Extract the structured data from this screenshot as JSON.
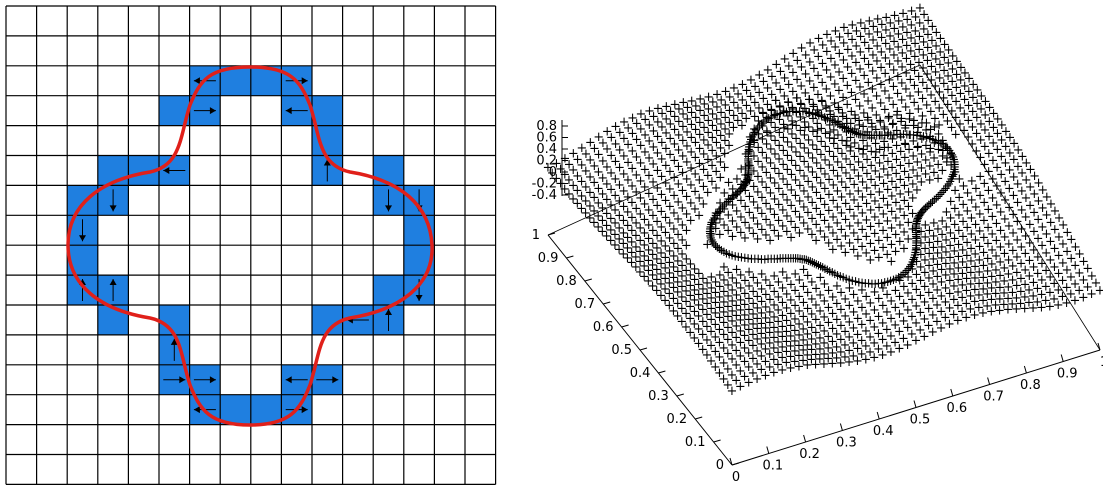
{
  "colors": {
    "highlight_cell": "#1f7fe0",
    "interface_curve": "#e0201a",
    "grid_line": "#000000",
    "surface_points": "#9400d3"
  },
  "left_figure": {
    "description_type": "grid-with-highlighted-interface-cells",
    "grid_columns": 16,
    "grid_rows": 16,
    "highlighted_cells": [
      [
        6,
        2
      ],
      [
        7,
        2
      ],
      [
        8,
        2
      ],
      [
        9,
        2
      ],
      [
        5,
        3
      ],
      [
        6,
        3
      ],
      [
        9,
        3
      ],
      [
        10,
        3
      ],
      [
        10,
        4
      ],
      [
        3,
        5
      ],
      [
        4,
        5
      ],
      [
        5,
        5
      ],
      [
        10,
        5
      ],
      [
        12,
        5
      ],
      [
        2,
        6
      ],
      [
        3,
        6
      ],
      [
        12,
        6
      ],
      [
        13,
        6
      ],
      [
        2,
        7
      ],
      [
        13,
        7
      ],
      [
        2,
        8
      ],
      [
        13,
        8
      ],
      [
        2,
        9
      ],
      [
        3,
        9
      ],
      [
        12,
        9
      ],
      [
        13,
        9
      ],
      [
        3,
        10
      ],
      [
        5,
        10
      ],
      [
        10,
        10
      ],
      [
        11,
        10
      ],
      [
        12,
        10
      ],
      [
        5,
        11
      ],
      [
        5,
        12
      ],
      [
        6,
        12
      ],
      [
        9,
        12
      ],
      [
        10,
        12
      ],
      [
        6,
        13
      ],
      [
        7,
        13
      ],
      [
        8,
        13
      ],
      [
        9,
        13
      ]
    ],
    "arrows": [
      {
        "col": 6,
        "row": 2,
        "dir": "left"
      },
      {
        "col": 9,
        "row": 2,
        "dir": "right"
      },
      {
        "col": 6,
        "row": 3,
        "dir": "right"
      },
      {
        "col": 9,
        "row": 3,
        "dir": "left"
      },
      {
        "col": 10,
        "row": 5,
        "dir": "up"
      },
      {
        "col": 12,
        "row": 6,
        "dir": "down"
      },
      {
        "col": 13,
        "row": 6,
        "dir": "down"
      },
      {
        "col": 5,
        "row": 5,
        "dir": "left"
      },
      {
        "col": 3,
        "row": 6,
        "dir": "down"
      },
      {
        "col": 2,
        "row": 7,
        "dir": "down"
      },
      {
        "col": 2,
        "row": 9,
        "dir": "up"
      },
      {
        "col": 3,
        "row": 9,
        "dir": "up"
      },
      {
        "col": 13,
        "row": 9,
        "dir": "down"
      },
      {
        "col": 12,
        "row": 10,
        "dir": "up"
      },
      {
        "col": 11,
        "row": 10,
        "dir": "left"
      },
      {
        "col": 5,
        "row": 11,
        "dir": "up"
      },
      {
        "col": 5,
        "row": 12,
        "dir": "right"
      },
      {
        "col": 6,
        "row": 12,
        "dir": "right"
      },
      {
        "col": 9,
        "row": 12,
        "dir": "left"
      },
      {
        "col": 10,
        "row": 12,
        "dir": "right"
      },
      {
        "col": 6,
        "row": 13,
        "dir": "left"
      },
      {
        "col": 9,
        "row": 13,
        "dir": "right"
      }
    ]
  },
  "right_figure": {
    "type": "3d-scatter",
    "z_ticks": [
      "0.8",
      "0.6",
      "0.4",
      "0.2",
      "0",
      "-0.2",
      "-0.4"
    ],
    "y_ticks": [
      "1",
      "0.9",
      "0.8",
      "0.7",
      "0.6",
      "0.5",
      "0.4",
      "0.3",
      "0.2",
      "0.1",
      "0"
    ],
    "x_ticks": [
      "0",
      "0.1",
      "0.2",
      "0.3",
      "0.4",
      "0.5",
      "0.6",
      "0.7",
      "0.8",
      "0.9",
      "1"
    ],
    "marker": "+"
  }
}
